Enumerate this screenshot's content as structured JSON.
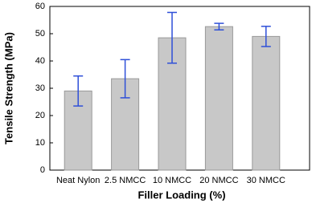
{
  "chart_data": {
    "type": "bar",
    "x_label": "Filler Loading (%)",
    "y_label": "Tensile Strength (MPa)",
    "categories": [
      "Neat Nylon",
      "2.5 NMCC",
      "10 NMCC",
      "20 NMCC",
      "30 NMCC"
    ],
    "values": [
      29,
      33.5,
      48.5,
      52.6,
      49
    ],
    "errors": [
      5.5,
      7,
      9.3,
      1.2,
      3.7
    ],
    "color": "#c8c8c8",
    "error_color": "#2e4fd8",
    "ylim": [
      0,
      60
    ],
    "yticks": [
      0,
      10,
      20,
      30,
      40,
      50,
      60
    ],
    "grid": false
  }
}
